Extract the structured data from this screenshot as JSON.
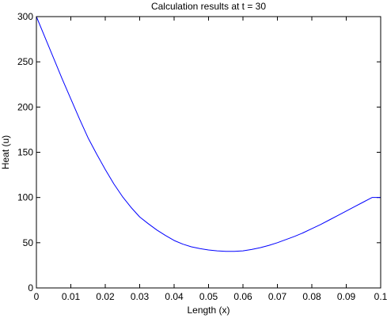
{
  "chart_data": {
    "type": "line",
    "title": "Calculation results at t = 30",
    "xlabel": "Length (x)",
    "ylabel": "Heat (u)",
    "xlim": [
      0,
      0.1
    ],
    "ylim": [
      0,
      300
    ],
    "xticks": [
      0,
      0.01,
      0.02,
      0.03,
      0.04,
      0.05,
      0.06,
      0.07,
      0.08,
      0.09,
      0.1
    ],
    "xtick_labels": [
      "0",
      "0.01",
      "0.02",
      "0.03",
      "0.04",
      "0.05",
      "0.06",
      "0.07",
      "0.08",
      "0.09",
      "0.1"
    ],
    "yticks": [
      0,
      50,
      100,
      150,
      200,
      250,
      300
    ],
    "ytick_labels": [
      "0",
      "50",
      "100",
      "150",
      "200",
      "250",
      "300"
    ],
    "grid": false,
    "legend": "none",
    "series": [
      {
        "color": "#0000ff",
        "x": [
          0,
          0.0025,
          0.005,
          0.0075,
          0.01,
          0.0125,
          0.015,
          0.0175,
          0.02,
          0.0225,
          0.025,
          0.0275,
          0.03,
          0.0325,
          0.035,
          0.0375,
          0.04,
          0.0425,
          0.045,
          0.0475,
          0.05,
          0.0525,
          0.055,
          0.0575,
          0.06,
          0.0625,
          0.065,
          0.0675,
          0.07,
          0.0725,
          0.075,
          0.0775,
          0.08,
          0.0825,
          0.085,
          0.0875,
          0.09,
          0.0925,
          0.095,
          0.0975,
          0.1
        ],
        "y": [
          300,
          277,
          254,
          231,
          209,
          187,
          166,
          148,
          131,
          115,
          101,
          89,
          78.5,
          71,
          64,
          58,
          52.5,
          48.5,
          45.5,
          43.5,
          42,
          41,
          40.5,
          40.5,
          41,
          42.5,
          44.5,
          47,
          50,
          53.5,
          57,
          61,
          65.5,
          70,
          75,
          80,
          85,
          90,
          95,
          100,
          100
        ]
      }
    ]
  }
}
